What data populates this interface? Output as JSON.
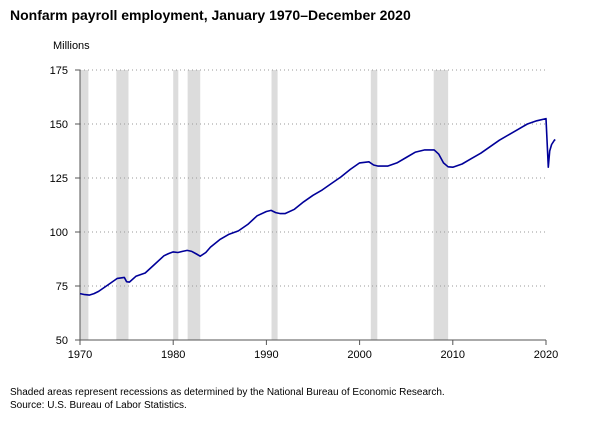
{
  "chart_data": {
    "type": "line",
    "title": "Nonfarm payroll employment, January 1970–December 2020",
    "ylabel": "Millions",
    "xlabel": "",
    "xlim": [
      1970,
      2020
    ],
    "ylim": [
      50,
      175
    ],
    "x_ticks": [
      1970,
      1980,
      1990,
      2000,
      2010,
      2020
    ],
    "y_ticks": [
      50,
      75,
      100,
      125,
      150,
      175
    ],
    "grid": "horizontal-dotted",
    "legend": "none",
    "line_color": "#000099",
    "recession_color": "#dcdcdc",
    "recessions": [
      [
        1969.92,
        1970.9
      ],
      [
        1973.9,
        1975.2
      ],
      [
        1980.0,
        1980.55
      ],
      [
        1981.55,
        1982.9
      ],
      [
        1990.55,
        1991.2
      ],
      [
        2001.2,
        2001.9
      ],
      [
        2007.95,
        2009.5
      ]
    ],
    "series": [
      {
        "x": [
          1970.0,
          1970.5,
          1971.0,
          1971.5,
          1972.0,
          1973.0,
          1974.0,
          1974.75,
          1975.0,
          1975.3,
          1976.0,
          1977.0,
          1978.0,
          1979.0,
          1979.5,
          1980.0,
          1980.5,
          1981.0,
          1981.5,
          1982.0,
          1982.5,
          1982.9,
          1983.5,
          1984.0,
          1985.0,
          1986.0,
          1987.0,
          1988.0,
          1989.0,
          1990.0,
          1990.5,
          1991.0,
          1991.5,
          1992.0,
          1993.0,
          1994.0,
          1995.0,
          1996.0,
          1997.0,
          1998.0,
          1999.0,
          2000.0,
          2001.0,
          2001.5,
          2002.0,
          2003.0,
          2004.0,
          2005.0,
          2006.0,
          2007.0,
          2008.0,
          2008.5,
          2009.0,
          2009.5,
          2010.0,
          2011.0,
          2012.0,
          2013.0,
          2014.0,
          2015.0,
          2016.0,
          2017.0,
          2018.0,
          2019.0,
          2020.0,
          2020.25,
          2020.4,
          2020.6,
          2020.9,
          2021.0
        ],
        "values": [
          71.5,
          71.0,
          70.8,
          71.5,
          72.5,
          75.5,
          78.5,
          79.0,
          77.0,
          76.8,
          79.5,
          81.0,
          85.0,
          89.0,
          90.0,
          90.8,
          90.5,
          91.0,
          91.5,
          91.0,
          89.8,
          88.8,
          90.5,
          93.0,
          96.5,
          99.0,
          100.5,
          103.5,
          107.5,
          109.5,
          110.0,
          109.0,
          108.5,
          108.5,
          110.5,
          114.0,
          117.0,
          119.5,
          122.5,
          125.5,
          129.0,
          132.0,
          132.5,
          131.0,
          130.5,
          130.5,
          132.0,
          134.5,
          137.0,
          138.0,
          138.0,
          136.0,
          132.0,
          130.2,
          130.0,
          131.5,
          134.0,
          136.5,
          139.5,
          142.5,
          145.0,
          147.5,
          150.0,
          151.5,
          152.5,
          130.0,
          137.5,
          140.5,
          142.5,
          142.8
        ]
      }
    ]
  },
  "footnotes": {
    "shading": "Shaded areas represent recessions as determined by the National Bureau of Economic Research.",
    "source": "Source: U.S. Bureau of Labor Statistics."
  }
}
